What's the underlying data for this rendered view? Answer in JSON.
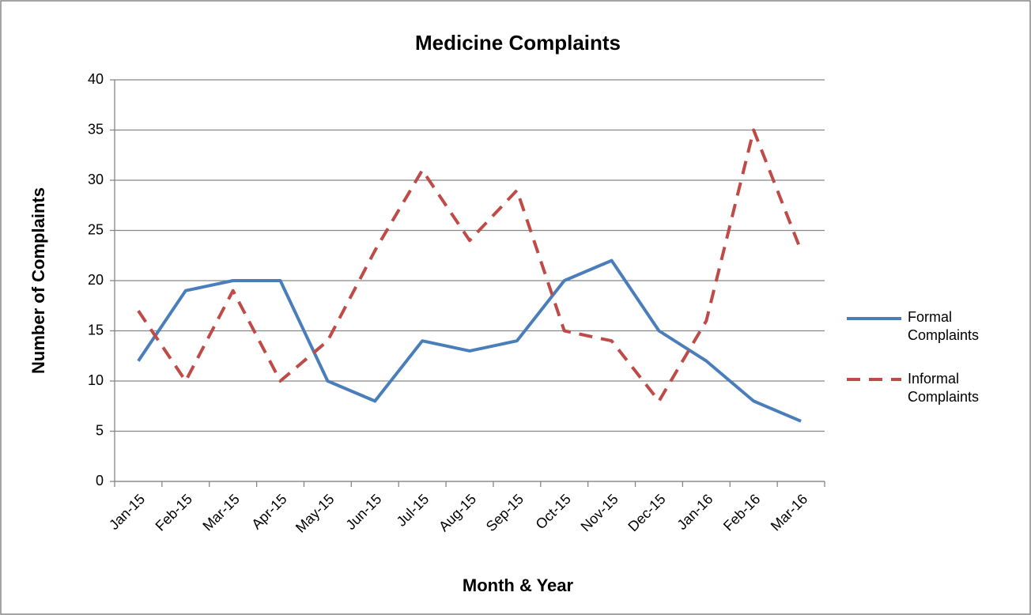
{
  "chart_data": {
    "type": "line",
    "title": "Medicine Complaints",
    "x_label": "Month & Year",
    "y_label": "Number of Complaints",
    "categories": [
      "Jan-15",
      "Feb-15",
      "Mar-15",
      "Apr-15",
      "May-15",
      "Jun-15",
      "Jul-15",
      "Aug-15",
      "Sep-15",
      "Oct-15",
      "Nov-15",
      "Dec-15",
      "Jan-16",
      "Feb-16",
      "Mar-16"
    ],
    "series": [
      {
        "name": "Formal Complaints",
        "color": "#4a7ebb",
        "dash": false,
        "values": [
          12,
          19,
          20,
          20,
          10,
          8,
          14,
          13,
          14,
          20,
          22,
          15,
          12,
          8,
          6
        ]
      },
      {
        "name": "Informal Complaints",
        "color": "#be4b48",
        "dash": true,
        "values": [
          17,
          10,
          19,
          10,
          14,
          23,
          31,
          24,
          29,
          15,
          14,
          8,
          16,
          35,
          23
        ]
      }
    ],
    "ylim": [
      0,
      40
    ],
    "yticks": [
      0,
      5,
      10,
      15,
      20,
      25,
      30,
      35,
      40
    ],
    "grid": true,
    "legend": "right"
  }
}
